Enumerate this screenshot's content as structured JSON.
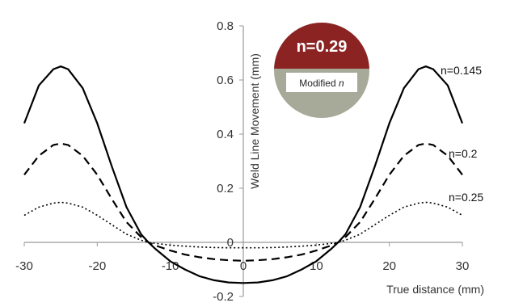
{
  "chart_data": {
    "type": "line",
    "xlabel": "True distance (mm)",
    "ylabel": "Weld Line Movement (mm)",
    "xlim": [
      -30,
      30
    ],
    "ylim": [
      -0.2,
      0.8
    ],
    "x_ticks": [
      -30,
      -20,
      -10,
      0,
      10,
      20,
      30
    ],
    "y_ticks": [
      -0.2,
      0,
      0.2,
      0.4,
      0.6,
      0.8
    ],
    "x_tick_labels": [
      "-30",
      "-20",
      "-10",
      "0",
      "10",
      "20",
      "30"
    ],
    "y_tick_labels": [
      "-0.2",
      "0",
      "0.2",
      "0.4",
      "0.6",
      "0.8"
    ],
    "grid": false,
    "legend": "inline labels at right",
    "series": [
      {
        "name": "n=0.145",
        "style": "solid",
        "color": "#000000",
        "x": [
          -30,
          -28,
          -26,
          -25,
          -24,
          -22,
          -20,
          -18,
          -16,
          -14,
          -13,
          -12,
          -10,
          -8,
          -6,
          -4,
          -2,
          0,
          2,
          4,
          6,
          8,
          10,
          12,
          13,
          14,
          16,
          18,
          20,
          22,
          24,
          25,
          26,
          28,
          30
        ],
        "y": [
          0.44,
          0.58,
          0.64,
          0.65,
          0.64,
          0.57,
          0.44,
          0.28,
          0.13,
          0.03,
          0.0,
          -0.025,
          -0.07,
          -0.1,
          -0.125,
          -0.14,
          -0.148,
          -0.15,
          -0.148,
          -0.14,
          -0.125,
          -0.1,
          -0.07,
          -0.025,
          0.0,
          0.03,
          0.13,
          0.28,
          0.44,
          0.57,
          0.64,
          0.65,
          0.64,
          0.58,
          0.44
        ]
      },
      {
        "name": "n=0.2",
        "style": "dashed",
        "color": "#000000",
        "x": [
          -30,
          -28,
          -26,
          -25,
          -24,
          -22,
          -20,
          -18,
          -16,
          -14,
          -13,
          -12,
          -10,
          -8,
          -6,
          -4,
          -2,
          0,
          2,
          4,
          6,
          8,
          10,
          12,
          13,
          14,
          16,
          18,
          20,
          22,
          24,
          25,
          26,
          28,
          30
        ],
        "y": [
          0.25,
          0.32,
          0.36,
          0.365,
          0.36,
          0.32,
          0.25,
          0.16,
          0.075,
          0.02,
          0.0,
          -0.012,
          -0.03,
          -0.045,
          -0.055,
          -0.062,
          -0.066,
          -0.068,
          -0.066,
          -0.062,
          -0.055,
          -0.045,
          -0.03,
          -0.012,
          0.0,
          0.02,
          0.075,
          0.16,
          0.25,
          0.32,
          0.36,
          0.365,
          0.36,
          0.32,
          0.25
        ]
      },
      {
        "name": "n=0.25",
        "style": "dotted",
        "color": "#000000",
        "x": [
          -30,
          -28,
          -26,
          -25,
          -24,
          -22,
          -20,
          -18,
          -16,
          -14,
          -13,
          -12,
          -10,
          -8,
          -6,
          -4,
          -2,
          0,
          2,
          4,
          6,
          8,
          10,
          12,
          13,
          14,
          16,
          18,
          20,
          22,
          24,
          25,
          26,
          28,
          30
        ],
        "y": [
          0.1,
          0.13,
          0.145,
          0.148,
          0.145,
          0.13,
          0.1,
          0.065,
          0.03,
          0.008,
          0.0,
          -0.004,
          -0.01,
          -0.014,
          -0.017,
          -0.019,
          -0.02,
          -0.02,
          -0.02,
          -0.019,
          -0.017,
          -0.014,
          -0.01,
          -0.004,
          0.0,
          0.008,
          0.03,
          0.065,
          0.1,
          0.13,
          0.145,
          0.148,
          0.145,
          0.13,
          0.1
        ]
      }
    ],
    "inset": {
      "top_label": "n=0.29",
      "bottom_label": "Modified ",
      "bottom_label_italic": "n",
      "top_color": "#8b2323",
      "bottom_color": "#a7aa98",
      "label_box_color": "#ffffff"
    }
  }
}
